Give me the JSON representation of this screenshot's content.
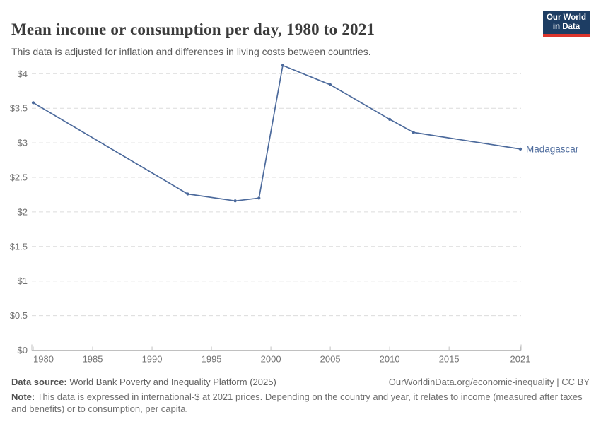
{
  "header": {
    "title": "Mean income or consumption per day, 1980 to 2021",
    "subtitle": "This data is adjusted for inflation and differences in living costs between countries.",
    "logo": {
      "line1": "Our World",
      "line2": "in Data",
      "bg_color": "#1d3d63",
      "accent_color": "#dc352c"
    }
  },
  "chart_data": {
    "type": "line",
    "title": "Mean income or consumption per day, 1980 to 2021",
    "xlabel": "",
    "ylabel": "",
    "x_range": [
      1980,
      2021
    ],
    "y_range": [
      0,
      4.2
    ],
    "grid": "horizontal-dashed",
    "legend_position": "end-of-line-label",
    "series": [
      {
        "name": "Madagascar",
        "color": "#4c6a9c",
        "x": [
          1980,
          1993,
          1997,
          1999,
          2001,
          2005,
          2010,
          2012,
          2021
        ],
        "values": [
          3.58,
          2.26,
          2.16,
          2.2,
          4.12,
          3.84,
          3.34,
          3.15,
          2.91
        ]
      }
    ],
    "x_ticks": [
      {
        "value": 1980,
        "label": "1980"
      },
      {
        "value": 1985,
        "label": "1985"
      },
      {
        "value": 1990,
        "label": "1990"
      },
      {
        "value": 1995,
        "label": "1995"
      },
      {
        "value": 2000,
        "label": "2000"
      },
      {
        "value": 2005,
        "label": "2005"
      },
      {
        "value": 2010,
        "label": "2010"
      },
      {
        "value": 2015,
        "label": "2015"
      },
      {
        "value": 2021,
        "label": "2021"
      }
    ],
    "y_ticks": [
      {
        "value": 0,
        "label": "$0"
      },
      {
        "value": 0.5,
        "label": "$0.5"
      },
      {
        "value": 1,
        "label": "$1"
      },
      {
        "value": 1.5,
        "label": "$1.5"
      },
      {
        "value": 2,
        "label": "$2"
      },
      {
        "value": 2.5,
        "label": "$2.5"
      },
      {
        "value": 3,
        "label": "$3"
      },
      {
        "value": 3.5,
        "label": "$3.5"
      },
      {
        "value": 4,
        "label": "$4"
      }
    ]
  },
  "footer": {
    "source_label": "Data source:",
    "source_text": "World Bank Poverty and Inequality Platform (2025)",
    "attribution": "OurWorldinData.org/economic-inequality | CC BY",
    "note_label": "Note:",
    "note_text": "This data is expressed in international-$ at 2021 prices. Depending on the country and year, it relates to income (measured after taxes and benefits) or to consumption, per capita."
  },
  "colors": {
    "line": "#4c6a9c",
    "gridline": "#dcdcdc",
    "axis": "#c0c0c0",
    "tick_label": "#737373",
    "title": "#3b3b3b",
    "subtitle": "#5a5a5a"
  }
}
